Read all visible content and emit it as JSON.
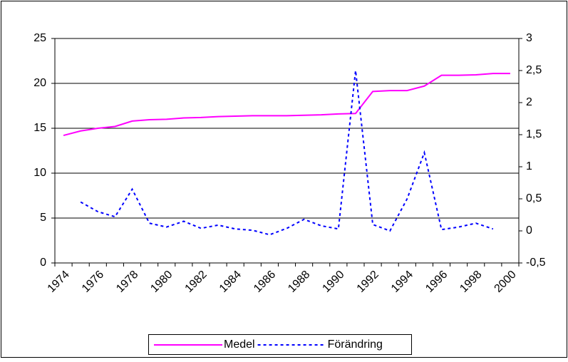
{
  "chart_data": {
    "type": "line",
    "categories": [
      "1974",
      null,
      "1976",
      null,
      "1978",
      null,
      "1980",
      null,
      "1982",
      null,
      "1984",
      null,
      "1986",
      null,
      "1988",
      null,
      "1990",
      null,
      "1992",
      null,
      "1994",
      null,
      "1996",
      null,
      "1998",
      null,
      "2000"
    ],
    "series": [
      {
        "name": "Medel",
        "color": "#ff00ff",
        "values": [
          14.2,
          14.7,
          15.0,
          15.2,
          15.8,
          15.95,
          16.0,
          16.15,
          16.2,
          16.3,
          16.35,
          16.4,
          16.4,
          16.4,
          16.45,
          16.5,
          16.6,
          16.65,
          19.1,
          19.2,
          19.2,
          19.7,
          20.9,
          20.9,
          20.95,
          21.1,
          21.1
        ]
      },
      {
        "name": "Förändring",
        "color": "#0000ff",
        "axis": "y2",
        "values": [
          null,
          0.45,
          0.3,
          0.22,
          0.65,
          0.12,
          0.06,
          0.15,
          0.04,
          0.09,
          0.03,
          0.01,
          -0.06,
          0.04,
          0.18,
          0.08,
          0.03,
          2.5,
          0.1,
          0.0,
          0.5,
          1.22,
          0.02,
          0.06,
          0.12,
          0.03,
          null
        ]
      }
    ],
    "ylim": [
      0,
      25
    ],
    "yticks": [
      0,
      5,
      10,
      15,
      20,
      25
    ],
    "y2lim": [
      -0.5,
      3
    ],
    "y2ticks": [
      {
        "value": -0.5,
        "label": "-0,5"
      },
      0,
      {
        "value": 0.5,
        "label": "0,5"
      },
      1,
      {
        "value": 1.5,
        "label": "1,5"
      },
      2,
      {
        "value": 2.5,
        "label": "2,5"
      },
      3
    ],
    "grid": true,
    "legend": "bottom"
  }
}
